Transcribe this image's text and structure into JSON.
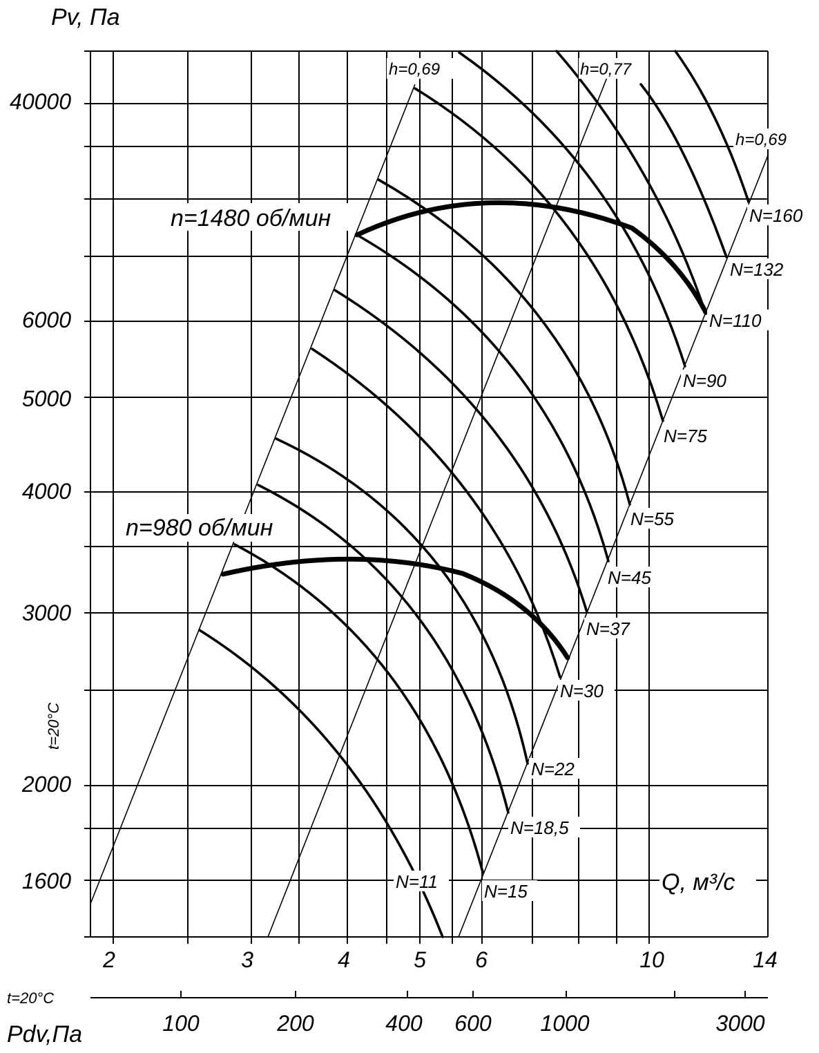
{
  "chart_data": {
    "type": "line",
    "ylabel": "Pv, Па",
    "xlabel": "Q, м³/с",
    "x2label": "Pdv,Па",
    "temp_label": "t=20°C",
    "temp_label_bottom": "t=20°C",
    "y_ticks": [
      {
        "label": "40000",
        "value": 40000
      },
      {
        "label": "6000",
        "value": 6000
      },
      {
        "label": "5000",
        "value": 5000
      },
      {
        "label": "4000",
        "value": 4000
      },
      {
        "label": "3000",
        "value": 3000
      },
      {
        "label": "2000",
        "value": 2000
      },
      {
        "label": "1600",
        "value": 1600
      }
    ],
    "x_ticks": [
      {
        "label": "2",
        "value": 2
      },
      {
        "label": "3",
        "value": 3
      },
      {
        "label": "4",
        "value": 4
      },
      {
        "label": "5",
        "value": 5
      },
      {
        "label": "6",
        "value": 6
      },
      {
        "label": "10",
        "value": 10
      },
      {
        "label": "14",
        "value": 14
      }
    ],
    "pdv_ticks": [
      {
        "label": "100",
        "value": 100
      },
      {
        "label": "200",
        "value": 200
      },
      {
        "label": "400",
        "value": 400
      },
      {
        "label": "600",
        "value": 600
      },
      {
        "label": "1000",
        "value": 1000
      },
      {
        "label": "3000",
        "value": 3000
      }
    ],
    "efficiency_labels": [
      "h=0,69",
      "h=0,77",
      "h=0,69"
    ],
    "speed_series": [
      {
        "name": "n=1480 об/мин"
      },
      {
        "name": "n=980 об/мин"
      }
    ],
    "power_labels": [
      "N=11",
      "N=15",
      "N=18,5",
      "N=22",
      "N=30",
      "N=37",
      "N=45",
      "N=55",
      "N=75",
      "N=90",
      "N=110",
      "N=132",
      "N=160"
    ]
  }
}
